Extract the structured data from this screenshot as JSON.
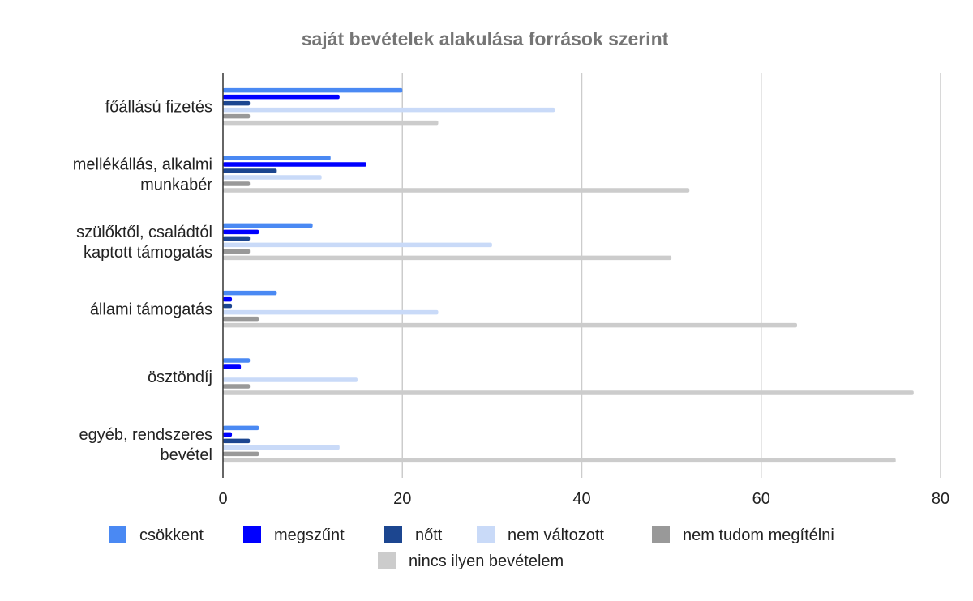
{
  "chart_data": {
    "type": "bar",
    "orientation": "horizontal",
    "title": "saját bevételek alakulása források szerint",
    "categories": [
      [
        "főállású fizetés"
      ],
      [
        "mellékállás, alkalmi",
        "munkabér"
      ],
      [
        "szülőktől, családtól",
        "kaptott támogatás"
      ],
      [
        "állami támogatás"
      ],
      [
        "ösztöndíj"
      ],
      [
        "egyéb, rendszeres",
        "bevétel"
      ]
    ],
    "series": [
      {
        "name": "csökkent",
        "color": "#4a89f3",
        "values": [
          20,
          12,
          10,
          6,
          3,
          4
        ]
      },
      {
        "name": "megszűnt",
        "color": "#0000ff",
        "values": [
          13,
          16,
          4,
          1,
          2,
          1
        ]
      },
      {
        "name": "nőtt",
        "color": "#1c4690",
        "values": [
          3,
          6,
          3,
          1,
          0,
          3
        ]
      },
      {
        "name": "nem változott",
        "color": "#c9daf8",
        "values": [
          37,
          11,
          30,
          24,
          15,
          13
        ]
      },
      {
        "name": "nem tudom megítélni",
        "color": "#999999",
        "values": [
          3,
          3,
          3,
          4,
          3,
          4
        ]
      },
      {
        "name": "nincs ilyen bevételem",
        "color": "#cccccc",
        "values": [
          24,
          52,
          50,
          64,
          77,
          75
        ]
      }
    ],
    "xlim": [
      0,
      80
    ],
    "xticks": [
      "0",
      "20",
      "40",
      "60",
      "80"
    ],
    "grid": true,
    "legend_position": "bottom"
  }
}
